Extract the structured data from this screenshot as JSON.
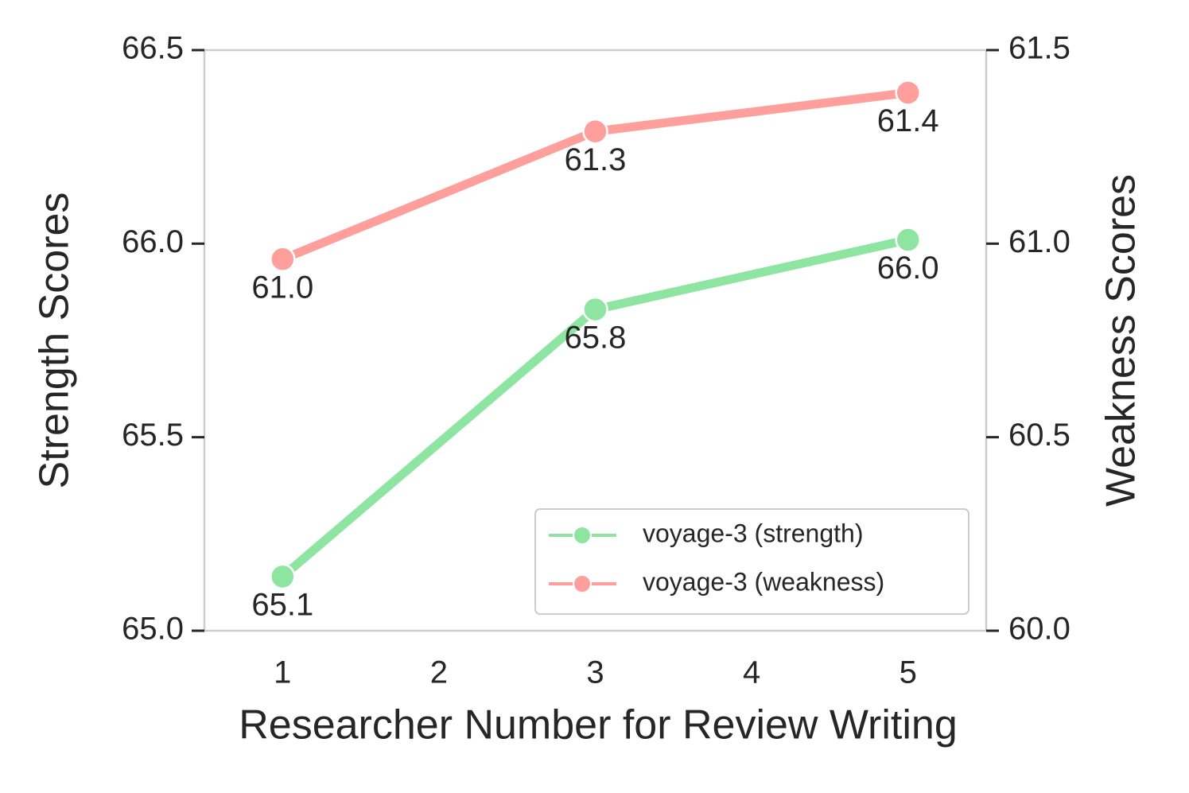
{
  "chart_data": {
    "type": "line",
    "x_label": "Researcher Number for Review Writing",
    "y_label": "Strength Scores",
    "y2_label": "Weakness Scores",
    "x": [
      1,
      3,
      5
    ],
    "xlim": [
      0.5,
      5.5
    ],
    "xticks": [
      1,
      2,
      3,
      4,
      5
    ],
    "ylim": [
      65.0,
      66.5
    ],
    "yticks": [
      {
        "value": 65.0,
        "label": "65.0"
      },
      65.5,
      {
        "value": 66.0,
        "label": "66.0"
      },
      66.5
    ],
    "y2lim": [
      60.0,
      61.5
    ],
    "y2ticks": [
      {
        "value": 60.0,
        "label": "60.0"
      },
      60.5,
      {
        "value": 61.0,
        "label": "61.0"
      },
      61.5
    ],
    "grid": false,
    "legend": "lower right",
    "series": [
      {
        "name": "voyage-3 (strength)",
        "color": "#8de5a1",
        "values": [
          65.14,
          65.83,
          66.01
        ],
        "value_labels": [
          "65.1",
          "65.8",
          "66.0"
        ]
      },
      {
        "name": "voyage-3 (weakness)",
        "color": "#ff9f9b",
        "axis": "y2",
        "values": [
          60.96,
          61.29,
          61.39
        ],
        "value_labels": [
          "61.0",
          "61.3",
          "61.4"
        ]
      }
    ]
  }
}
